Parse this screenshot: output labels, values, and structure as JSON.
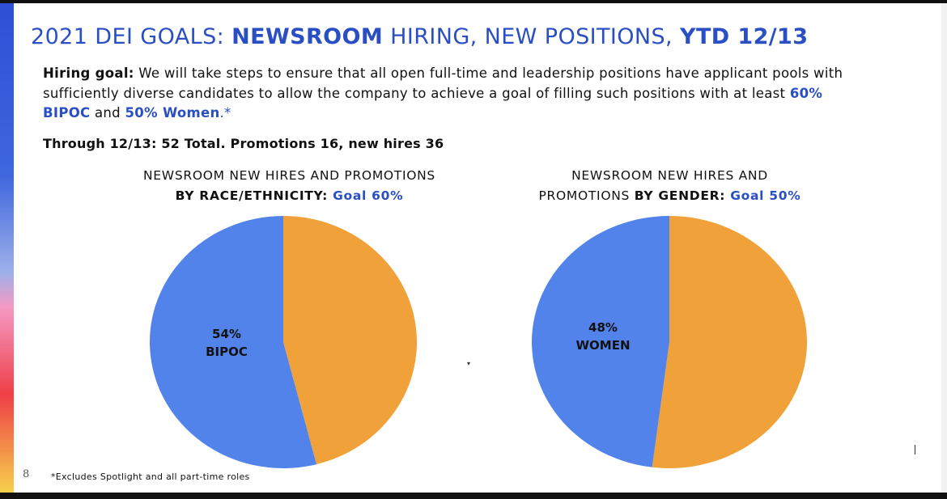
{
  "slide": {
    "title": {
      "part1": "2021 DEI GOALS: ",
      "part2": "NEWSROOM",
      "part3": " HIRING, NEW POSITIONS, ",
      "part4": "YTD 12/13"
    },
    "goal": {
      "lead": "Hiring goal:",
      "body": " We will take steps to ensure that all open full-time and leadership positions have applicant pools with sufficiently diverse candidates to allow the company to achieve a goal of filling such positions with at least ",
      "bipoc": "60% BIPOC",
      "and": " and ",
      "women": "50% Women",
      "star": ".*"
    },
    "through": "Through 12/13: 52 Total. Promotions 16, new hires 36",
    "footnote": "*Excludes Spotlight and all part-time roles",
    "page_number": "8"
  },
  "colors": {
    "accent": "#2a4fc4",
    "bipoc_women": "#5283ea",
    "other": "#f1a13a"
  },
  "chart_data": [
    {
      "type": "pie",
      "title_line1": "NEWSROOM NEW HIRES AND PROMOTIONS",
      "title_bold": "BY RACE/ETHNICITY:",
      "title_goal": " Goal 60%",
      "slices": [
        {
          "name": "BIPOC",
          "value": 54,
          "color": "#5283ea",
          "label_pct": "54%",
          "label_name": "BIPOC"
        },
        {
          "name": "",
          "value": 46,
          "color": "#f1a13a"
        }
      ]
    },
    {
      "type": "pie",
      "title_line1": "NEWSROOM NEW HIRES AND",
      "title_line2a": "PROMOTIONS ",
      "title_bold": "BY GENDER:",
      "title_goal": " Goal 50%",
      "slices": [
        {
          "name": "WOMEN",
          "value": 48,
          "color": "#5283ea",
          "label_pct": "48%",
          "label_name": "WOMEN"
        },
        {
          "name": "",
          "value": 52,
          "color": "#f1a13a"
        }
      ]
    }
  ]
}
